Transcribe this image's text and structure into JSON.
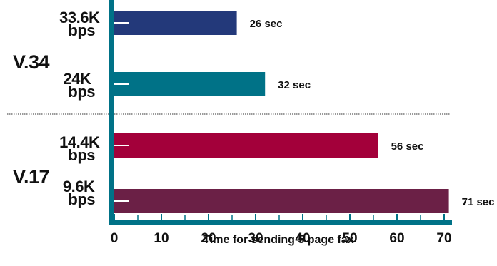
{
  "chart_data": {
    "type": "bar",
    "orientation": "horizontal",
    "categories": [
      "33.6K bps",
      "24K bps",
      "14.4K bps",
      "9.6K bps"
    ],
    "values": [
      26,
      32,
      56,
      71
    ],
    "value_labels": [
      "26 sec",
      "32 sec",
      "56 sec",
      "71 sec"
    ],
    "groups": [
      {
        "name": "V.34",
        "categories": [
          "33.6K bps",
          "24K bps"
        ]
      },
      {
        "name": "V.17",
        "categories": [
          "14.4K bps",
          "9.6K bps"
        ]
      }
    ],
    "category_lines": [
      [
        "33.6K",
        "bps"
      ],
      [
        "24K",
        "bps"
      ],
      [
        "14.4K",
        "bps"
      ],
      [
        "9.6K",
        "bps"
      ]
    ],
    "xlabel": "Time for sending 5 page fax",
    "ylabel": "",
    "xlim": [
      0,
      72
    ],
    "xticks": [
      0,
      10,
      20,
      30,
      40,
      50,
      60,
      70
    ],
    "grid": false,
    "colors": [
      "#23397a",
      "#007287",
      "#a3003a",
      "#6b2046"
    ],
    "axis_color": "#007287"
  }
}
